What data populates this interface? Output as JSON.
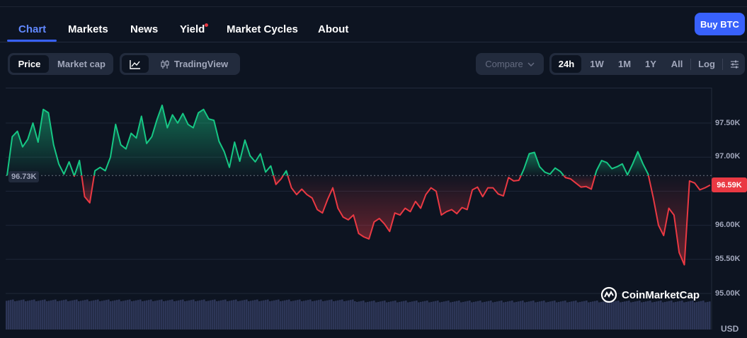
{
  "nav": {
    "tabs": [
      {
        "label": "Chart"
      },
      {
        "label": "Markets"
      },
      {
        "label": "News"
      },
      {
        "label": "Yield"
      },
      {
        "label": "Market Cycles"
      },
      {
        "label": "About"
      }
    ],
    "active_tab": "Chart",
    "yield_badge_color": "#ea3943",
    "buy_label": "Buy BTC"
  },
  "controls": {
    "view_toggle": {
      "options": [
        "Price",
        "Market cap"
      ],
      "selected": "Price"
    },
    "chart_style": {
      "line_icon": "line-chart-icon",
      "tradingview_icon": "candlestick-icon",
      "tradingview_label": "TradingView"
    },
    "compare": {
      "label": "Compare",
      "icon": "chevron-down-icon"
    },
    "ranges": [
      "24h",
      "1W",
      "1M",
      "1Y",
      "All"
    ],
    "selected_range": "24h",
    "log_label": "Log",
    "settings_icon": "sliders-icon"
  },
  "chart_data": {
    "type": "line",
    "title": "",
    "xlabel": "",
    "ylabel": "",
    "currency": "USD",
    "ylim": [
      94850,
      98100
    ],
    "y_ticks": [
      "97.50K",
      "97.00K",
      "96.00K",
      "95.50K",
      "95.00K"
    ],
    "open_label": "96.73K",
    "open_value": 96730,
    "current_label": "96.59K",
    "current_value": 96590,
    "up_color": "#16c784",
    "down_color": "#ea3943",
    "watermark": "CoinMarketCap",
    "series": [
      {
        "values": [
          96730,
          97300,
          97380,
          97150,
          97260,
          97500,
          97220,
          97700,
          97650,
          97180,
          96900,
          96750,
          96930,
          96720,
          96950,
          96420,
          96330,
          96800,
          96850,
          96800,
          97000,
          97480,
          97180,
          97120,
          97350,
          97280,
          97600,
          97200,
          97300,
          97550,
          97760,
          97430,
          97620,
          97500,
          97640,
          97480,
          97430,
          97650,
          97700,
          97560,
          97540,
          97230,
          97080,
          96850,
          97220,
          96940,
          97250,
          97020,
          96930,
          97050,
          96780,
          96870,
          96600,
          96680,
          96800,
          96550,
          96450,
          96530,
          96450,
          96400,
          96230,
          96180,
          96380,
          96550,
          96250,
          96120,
          96080,
          96150,
          95880,
          95830,
          95800,
          96050,
          96100,
          96020,
          95910,
          96180,
          96150,
          96250,
          96200,
          96350,
          96250,
          96450,
          96550,
          96500,
          96150,
          96200,
          96230,
          96170,
          96260,
          96230,
          96520,
          96560,
          96420,
          96550,
          96550,
          96460,
          96430,
          96700,
          96650,
          96660,
          96830,
          97050,
          97070,
          96860,
          96780,
          96750,
          96840,
          96790,
          96700,
          96680,
          96620,
          96560,
          96570,
          96530,
          96800,
          96950,
          96920,
          96830,
          96860,
          96900,
          96740,
          96900,
          97080,
          96900,
          96750,
          96400,
          96000,
          95850,
          96250,
          96150,
          95600,
          95420,
          96650,
          96620,
          96520,
          96550,
          96590
        ]
      }
    ]
  },
  "volume": {
    "color": "#2d3657"
  }
}
